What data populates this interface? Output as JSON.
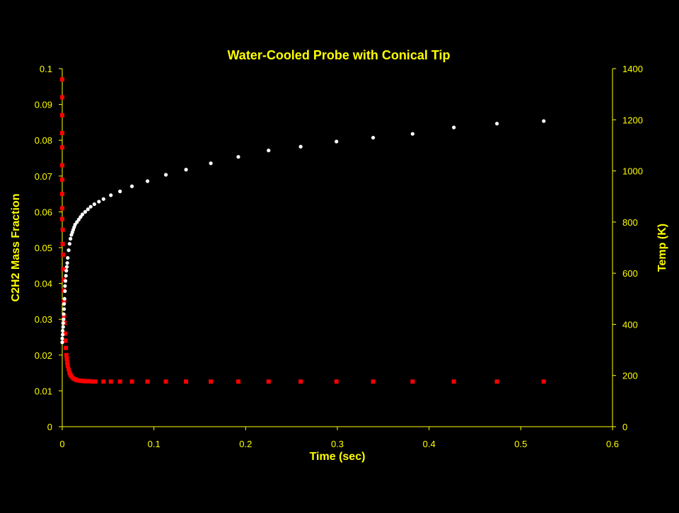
{
  "chart_data": {
    "type": "scatter",
    "title": "Water-Cooled Probe with Conical Tip",
    "xlabel": "Time (sec)",
    "ylabel": "C2H2 Mass Fraction",
    "y2label": "Temp (K)",
    "xlim": [
      0,
      0.6
    ],
    "ylim": [
      0,
      0.1
    ],
    "y2lim": [
      0,
      1400
    ],
    "x_ticks": [
      "0",
      "0.1",
      "0.2",
      "0.3",
      "0.4",
      "0.5",
      "0.6"
    ],
    "y_ticks": [
      "0",
      "0.01",
      "0.02",
      "0.03",
      "0.04",
      "0.05",
      "0.06",
      "0.07",
      "0.08",
      "0.09",
      "0.1"
    ],
    "y2_ticks": [
      "0",
      "200",
      "400",
      "600",
      "800",
      "1000",
      "1200",
      "1400"
    ],
    "grid": false,
    "legend": "none",
    "colors": {
      "background": "#000000",
      "text": "#ffff00",
      "axis": "#ffff00",
      "c2h2_marker": "#ff0000",
      "temp_marker": "#ffffff"
    },
    "series": [
      {
        "axis": "left",
        "marker": "square",
        "color": "#ff0000",
        "x": [
          0.0,
          0.0,
          0.0,
          0.0,
          0.0,
          0.0,
          0.0,
          0.0,
          0.0,
          0.0,
          0.0005,
          0.0005,
          0.001,
          0.001,
          0.0015,
          0.0015,
          0.002,
          0.002,
          0.0025,
          0.003,
          0.0035,
          0.004,
          0.0045,
          0.005,
          0.0055,
          0.006,
          0.007,
          0.008,
          0.009,
          0.01,
          0.012,
          0.014,
          0.016,
          0.018,
          0.02,
          0.022,
          0.024,
          0.026,
          0.028,
          0.03,
          0.033,
          0.036,
          0.045,
          0.053,
          0.063,
          0.076,
          0.093,
          0.113,
          0.135,
          0.162,
          0.192,
          0.225,
          0.26,
          0.299,
          0.339,
          0.382,
          0.427,
          0.474,
          0.525
        ],
        "y": [
          0.097,
          0.092,
          0.087,
          0.082,
          0.078,
          0.073,
          0.069,
          0.065,
          0.061,
          0.058,
          0.055,
          0.051,
          0.048,
          0.044,
          0.041,
          0.038,
          0.035,
          0.031,
          0.029,
          0.026,
          0.024,
          0.022,
          0.02,
          0.019,
          0.018,
          0.017,
          0.016,
          0.015,
          0.0145,
          0.014,
          0.0135,
          0.0132,
          0.013,
          0.0129,
          0.0128,
          0.0128,
          0.0127,
          0.0127,
          0.0127,
          0.0127,
          0.0126,
          0.0126,
          0.0126,
          0.0126,
          0.0126,
          0.0126,
          0.0126,
          0.0126,
          0.0126,
          0.0126,
          0.0126,
          0.0126,
          0.0126,
          0.0126,
          0.0126,
          0.0126,
          0.0126,
          0.0126,
          0.0126
        ]
      },
      {
        "axis": "right",
        "marker": "circle",
        "color": "#ffffff",
        "x": [
          0.0,
          0.0,
          0.0005,
          0.0005,
          0.001,
          0.001,
          0.0015,
          0.0015,
          0.002,
          0.002,
          0.0025,
          0.003,
          0.003,
          0.0035,
          0.004,
          0.0045,
          0.005,
          0.0055,
          0.006,
          0.007,
          0.008,
          0.009,
          0.01,
          0.011,
          0.012,
          0.013,
          0.014,
          0.016,
          0.018,
          0.02,
          0.022,
          0.025,
          0.028,
          0.031,
          0.035,
          0.04,
          0.045,
          0.053,
          0.063,
          0.076,
          0.093,
          0.113,
          0.135,
          0.162,
          0.192,
          0.225,
          0.26,
          0.299,
          0.339,
          0.382,
          0.427,
          0.474,
          0.525
        ],
        "y": [
          330,
          345,
          360,
          375,
          390,
          405,
          420,
          440,
          460,
          480,
          500,
          530,
          550,
          570,
          590,
          610,
          625,
          640,
          660,
          690,
          715,
          735,
          750,
          760,
          770,
          780,
          790,
          800,
          810,
          820,
          830,
          840,
          850,
          860,
          870,
          880,
          890,
          905,
          920,
          940,
          960,
          985,
          1005,
          1030,
          1055,
          1080,
          1095,
          1115,
          1130,
          1145,
          1170,
          1185,
          1195
        ]
      }
    ]
  }
}
